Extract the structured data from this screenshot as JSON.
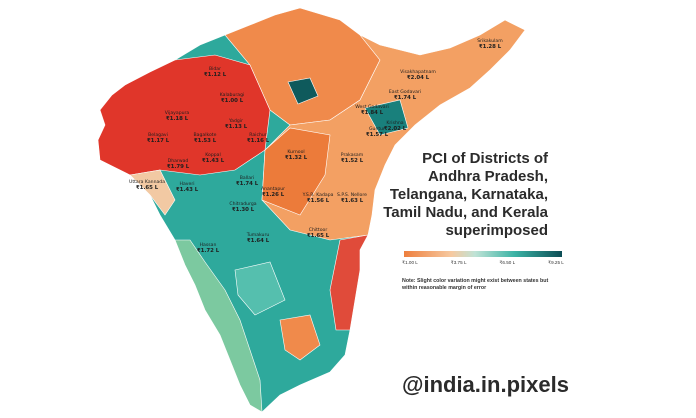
{
  "title": "PCI of Districts of Andhra Pradesh, Telangana, Karnataka, Tamil Nadu, and Kerala superimposed",
  "legend": {
    "labels": [
      "₹1.00 L",
      "₹3.75 L",
      "₹6.50 L",
      "₹9.25 L"
    ]
  },
  "note": "Note: Slight color variation might exist between states but within reasonable margin of error",
  "handle": "@india.in.pixels",
  "districts": [
    {
      "name": "Srikakulam",
      "pci": "₹1.28 L"
    },
    {
      "name": "Visakhapatnam",
      "pci": "₹2.04 L"
    },
    {
      "name": "East Godavari",
      "pci": "₹1.74 L"
    },
    {
      "name": "West Godavari",
      "pci": "₹1.84 L"
    },
    {
      "name": "Krishna",
      "pci": "₹2.02 L"
    },
    {
      "name": "Guntur",
      "pci": "₹1.57 L"
    },
    {
      "name": "Prakasam",
      "pci": "₹1.52 L"
    },
    {
      "name": "Kurnool",
      "pci": "₹1.32 L"
    },
    {
      "name": "Anantapur",
      "pci": "₹1.26 L"
    },
    {
      "name": "Y.S.R. Kadapa",
      "pci": "₹1.56 L"
    },
    {
      "name": "S.P.S. Nellore",
      "pci": "₹1.63 L"
    },
    {
      "name": "Chittoor",
      "pci": "₹1.65 L"
    },
    {
      "name": "Bidar",
      "pci": "₹1.12 L"
    },
    {
      "name": "Kalaburagi",
      "pci": "₹1.00 L"
    },
    {
      "name": "Yadgir",
      "pci": "₹1.13 L"
    },
    {
      "name": "Vijayapura",
      "pci": "₹1.18 L"
    },
    {
      "name": "Bagalkote",
      "pci": "₹1.53 L"
    },
    {
      "name": "Raichur",
      "pci": "₹1.16 L"
    },
    {
      "name": "Belagavi",
      "pci": "₹1.17 L"
    },
    {
      "name": "Koppal",
      "pci": "₹1.43 L"
    },
    {
      "name": "Dharwad",
      "pci": "₹1.79 L"
    },
    {
      "name": "Ballari",
      "pci": "₹1.74 L"
    },
    {
      "name": "Haveri",
      "pci": "₹1.43 L"
    },
    {
      "name": "Uttara Kannada",
      "pci": "₹1.65 L"
    },
    {
      "name": "Chitradurga",
      "pci": "₹1.30 L"
    },
    {
      "name": "Tumakuru",
      "pci": "₹1.64 L"
    },
    {
      "name": "Hassan",
      "pci": "₹1.72 L"
    }
  ]
}
